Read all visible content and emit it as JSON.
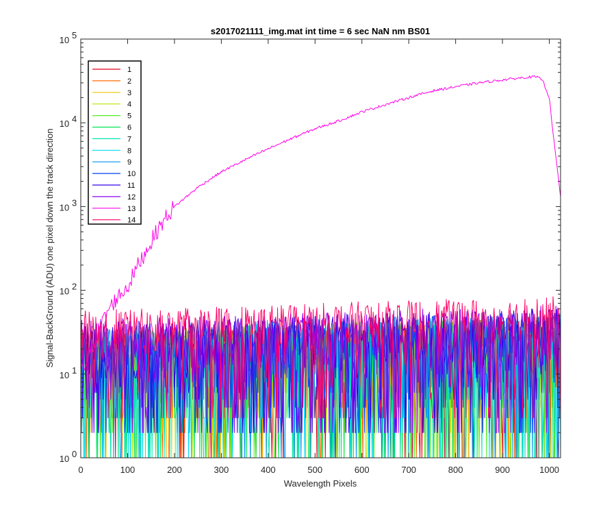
{
  "chart_data": {
    "type": "line",
    "title": "s2017021111_img.mat int time = 6 sec  NaN nm BS01",
    "xlabel": "Wavelength Pixels",
    "ylabel": "Signal-BackGround (ADU) one pixel down the track direction",
    "xlim": [
      0,
      1024
    ],
    "ylim": [
      1,
      100000
    ],
    "yscale": "log",
    "grid": false,
    "legend_position": "top-left",
    "x_ticks": [
      "0",
      "100",
      "200",
      "300",
      "400",
      "500",
      "600",
      "700",
      "800",
      "900",
      "1000"
    ],
    "y_tick_bases": [
      "10",
      "10",
      "10",
      "10",
      "10",
      "10"
    ],
    "y_tick_exponents": [
      "0",
      "1",
      "2",
      "3",
      "4",
      "5"
    ],
    "y_tick_values": [
      1,
      10,
      100,
      1000,
      10000,
      100000
    ],
    "x_tick_values": [
      0,
      100,
      200,
      300,
      400,
      500,
      600,
      700,
      800,
      900,
      1000
    ],
    "series": [
      {
        "name": "1",
        "color": "#e0001a",
        "kind": "noise",
        "approx_range": [
          1,
          35
        ]
      },
      {
        "name": "2",
        "color": "#ff6a00",
        "kind": "noise",
        "approx_range": [
          1,
          35
        ]
      },
      {
        "name": "3",
        "color": "#f2c500",
        "kind": "noise",
        "approx_range": [
          1,
          35
        ]
      },
      {
        "name": "4",
        "color": "#b3e600",
        "kind": "noise",
        "approx_range": [
          1,
          40
        ]
      },
      {
        "name": "5",
        "color": "#55ee22",
        "kind": "noise",
        "approx_range": [
          1,
          40
        ]
      },
      {
        "name": "6",
        "color": "#00e655",
        "kind": "noise",
        "approx_range": [
          1,
          40
        ]
      },
      {
        "name": "7",
        "color": "#00e6b3",
        "kind": "noise",
        "approx_range": [
          1,
          40
        ]
      },
      {
        "name": "8",
        "color": "#00d9f2",
        "kind": "noise",
        "approx_range": [
          1,
          40
        ]
      },
      {
        "name": "9",
        "color": "#0095f2",
        "kind": "noise",
        "approx_range": [
          1,
          45
        ]
      },
      {
        "name": "10",
        "color": "#0040f2",
        "kind": "noise",
        "approx_range": [
          2,
          45
        ]
      },
      {
        "name": "11",
        "color": "#3300e6",
        "kind": "noise",
        "approx_range": [
          2,
          50
        ]
      },
      {
        "name": "12",
        "color": "#8c00f2",
        "kind": "noise",
        "approx_range": [
          2,
          55
        ]
      },
      {
        "name": "13",
        "color": "#ff00e6",
        "kind": "signal",
        "x": [
          0,
          20,
          40,
          60,
          80,
          100,
          120,
          140,
          160,
          180,
          200,
          250,
          300,
          350,
          400,
          450,
          500,
          550,
          600,
          650,
          700,
          750,
          800,
          850,
          900,
          950,
          970,
          985,
          1000,
          1010,
          1024
        ],
        "values": [
          10,
          18,
          35,
          60,
          85,
          110,
          190,
          300,
          480,
          720,
          1000,
          1700,
          2600,
          3600,
          4900,
          6500,
          8500,
          10500,
          13500,
          16500,
          20000,
          24000,
          27000,
          30000,
          32500,
          35000,
          35500,
          33000,
          20000,
          6000,
          1300
        ]
      },
      {
        "name": "14",
        "color": "#ff0066",
        "kind": "noise",
        "approx_range": [
          3,
          70
        ]
      }
    ]
  }
}
